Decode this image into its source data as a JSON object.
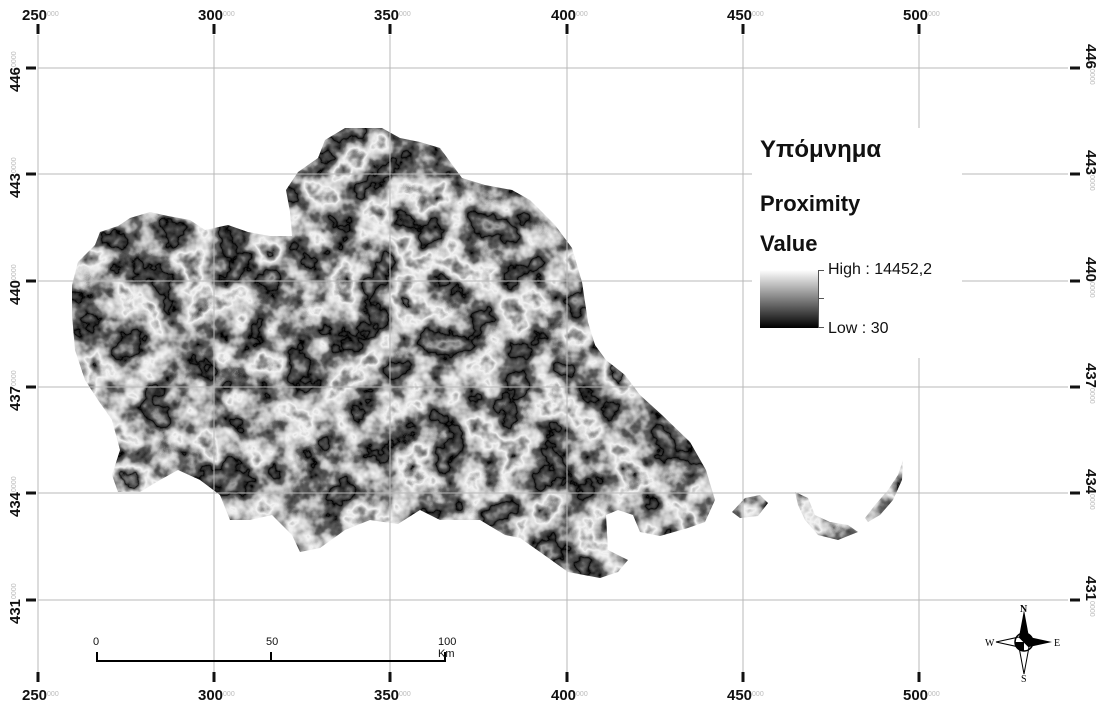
{
  "map": {
    "grid_x_labels": [
      {
        "major": "250",
        "minor": "000"
      },
      {
        "major": "300",
        "minor": "000"
      },
      {
        "major": "350",
        "minor": "000"
      },
      {
        "major": "400",
        "minor": "000"
      },
      {
        "major": "450",
        "minor": "000"
      },
      {
        "major": "500",
        "minor": "000"
      }
    ],
    "grid_y_labels": [
      {
        "major": "446",
        "minor": "0000"
      },
      {
        "major": "443",
        "minor": "0000"
      },
      {
        "major": "440",
        "minor": "0000"
      },
      {
        "major": "437",
        "minor": "0000"
      },
      {
        "major": "434",
        "minor": "0000"
      },
      {
        "major": "431",
        "minor": "0000"
      }
    ]
  },
  "legend": {
    "title": "Υπόμνημα",
    "layer": "Proximity",
    "field": "Value",
    "high_label": "High : 14452,2",
    "low_label": "Low : 30"
  },
  "scalebar": {
    "labels": [
      "0",
      "50",
      "100 Km"
    ]
  },
  "north_arrow": {
    "n": "N",
    "s": "S",
    "e": "E",
    "w": "W",
    "icon": "compass-rose-icon"
  }
}
